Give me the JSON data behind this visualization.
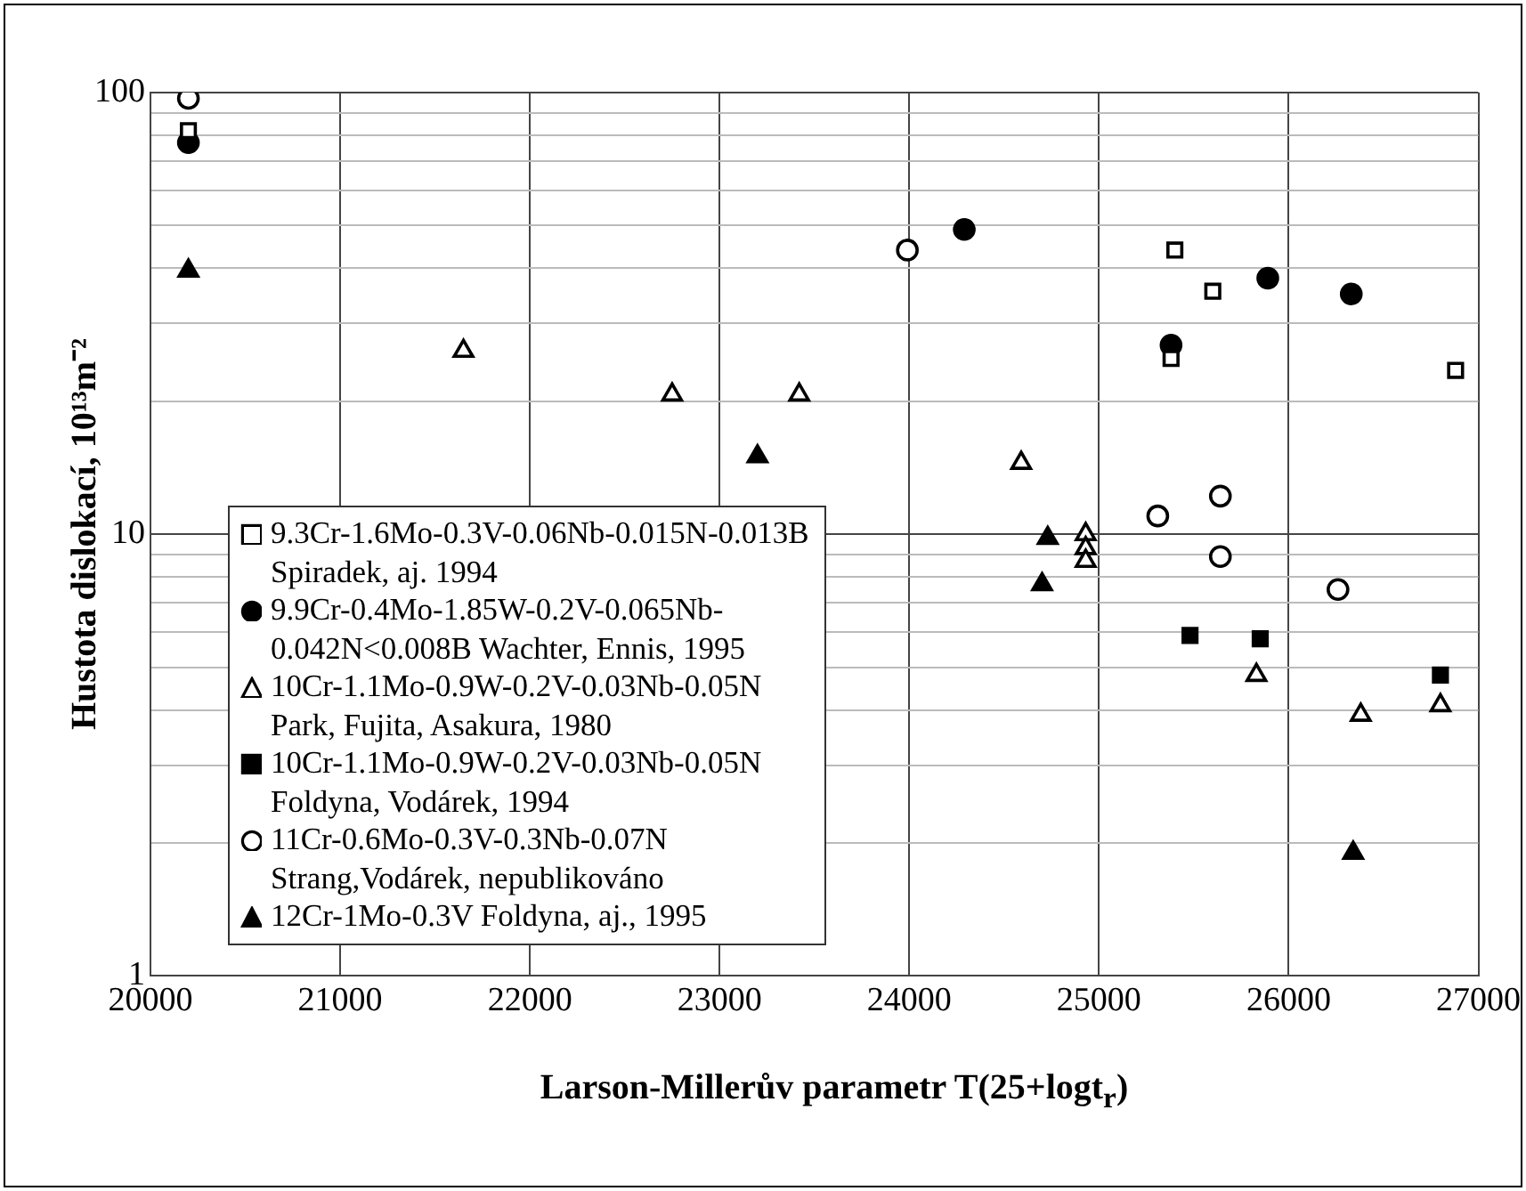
{
  "chart_data": {
    "type": "scatter",
    "xlabel": "Larson-Millerův parametr T(25+logt$_{r}$)",
    "ylabel": "Hustota dislokací, 10¹³m⁻²",
    "log": "y",
    "xlim": [
      20000,
      27000
    ],
    "xticks": [
      20000,
      21000,
      22000,
      23000,
      24000,
      25000,
      26000,
      27000
    ],
    "ylim": [
      1,
      100
    ],
    "yticks": [
      1,
      {
        "value": 2,
        "label": null
      },
      {
        "value": 3,
        "label": null
      },
      {
        "value": 4,
        "label": null
      },
      {
        "value": 5,
        "label": null
      },
      {
        "value": 6,
        "label": null
      },
      {
        "value": 7,
        "label": null
      },
      {
        "value": 8,
        "label": null
      },
      {
        "value": 9,
        "label": null
      },
      10,
      {
        "value": 20,
        "label": null
      },
      {
        "value": 30,
        "label": null
      },
      {
        "value": 40,
        "label": null
      },
      {
        "value": 50,
        "label": null
      },
      {
        "value": 60,
        "label": null
      },
      {
        "value": 70,
        "label": null
      },
      {
        "value": 80,
        "label": null
      },
      {
        "value": 90,
        "label": null
      },
      100
    ],
    "grid": true,
    "legend": "left",
    "series": [
      {
        "name": "9.3Cr-1.6Mo-0.3V-0.06Nb-0.015N-0.013B Spiradek, aj. 1994",
        "color": "#ffffff",
        "marker": "square",
        "x": [
          20200,
          25400,
          25600,
          25380,
          26880
        ],
        "values": [
          82,
          44,
          35.5,
          25,
          23.5
        ]
      },
      {
        "name": "9.9Cr-0.4Mo-1.85W-0.2V-0.065Nb-0.042N<0.008B Wachter, Ennis, 1995",
        "color": "#000000",
        "marker": "circle",
        "x": [
          20200,
          24290,
          25380,
          25890,
          26330
        ],
        "values": [
          77,
          49,
          26.8,
          38,
          35
        ]
      },
      {
        "name": "10Cr-1.1Mo-0.9W-0.2V-0.03Nb-0.05N Park, Fujita, Asakura, 1980",
        "color": "#ffffff",
        "marker": "triangle",
        "x": [
          21650,
          22750,
          23420,
          24590,
          24930,
          24930,
          24930,
          25830,
          26380,
          26800
        ],
        "values": [
          26,
          20.7,
          20.7,
          14.5,
          10,
          9.3,
          8.7,
          4.8,
          3.9,
          4.1
        ]
      },
      {
        "name": "10Cr-1.1Mo-0.9W-0.2V-0.03Nb-0.05N Foldyna, Vodárek, 1994",
        "color": "#000000",
        "marker": "square",
        "x": [
          25480,
          25850,
          26800
        ],
        "values": [
          5.9,
          5.8,
          4.8
        ]
      },
      {
        "name": "11Cr-0.6Mo-0.3V-0.3Nb-0.07N Strang,Vodárek, nepublikováno",
        "color": "#ffffff",
        "marker": "circle",
        "x": [
          20200,
          23990,
          25310,
          25640,
          25640,
          26260
        ],
        "values": [
          97,
          44,
          11,
          12.2,
          8.9,
          7.5
        ]
      },
      {
        "name": "12Cr-1Mo-0.3V Foldyna, aj., 1995",
        "color": "#000000",
        "marker": "triangle",
        "x": [
          20200,
          23200,
          24730,
          24700,
          26340
        ],
        "values": [
          39.5,
          15,
          9.8,
          7.7,
          1.9
        ]
      }
    ]
  }
}
